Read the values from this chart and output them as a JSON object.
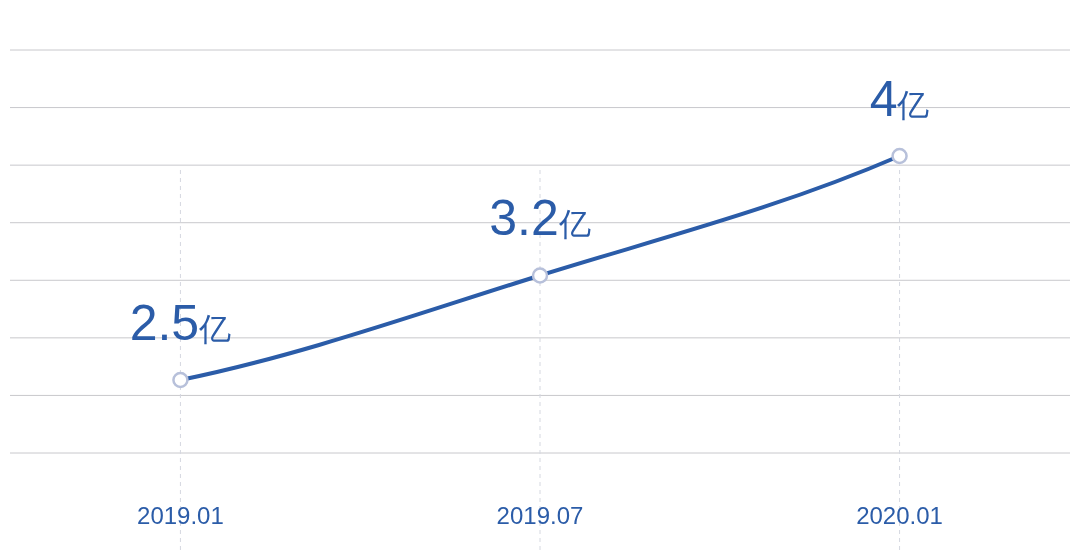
{
  "chart_data": {
    "type": "line",
    "categories": [
      "2019.01",
      "2019.07",
      "2020.01"
    ],
    "series": [
      {
        "color": "#2b5ca8",
        "values": [
          2.5,
          3.2,
          4
        ],
        "value_labels": [
          "2.5亿",
          "3.2亿",
          "4亿"
        ]
      }
    ],
    "marker": "circle",
    "grid": true
  }
}
